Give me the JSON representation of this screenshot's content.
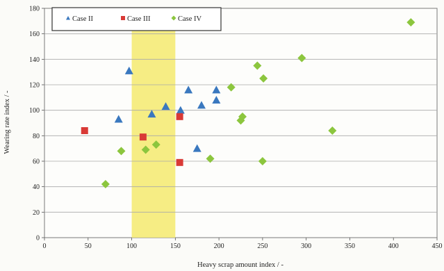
{
  "chart_data": {
    "type": "scatter",
    "xlabel": "Heavy scrap amount index / -",
    "ylabel": "Wearing rate index / -",
    "xlim": [
      0,
      450
    ],
    "ylim": [
      0,
      180
    ],
    "x_ticks": [
      "0",
      "50",
      "100",
      "150",
      "200",
      "250",
      "300",
      "350",
      "400",
      "450"
    ],
    "y_ticks": [
      "0",
      "20",
      "40",
      "60",
      "80",
      "100",
      "120",
      "140",
      "160",
      "180"
    ],
    "grid": "horizontal",
    "legend_position": "top-left",
    "highlight_band": {
      "x_from": 100,
      "x_to": 150,
      "color": "#f4ea6e"
    },
    "series": [
      {
        "name": "Case II",
        "legend_label": "Case II",
        "marker": "triangle",
        "color": "#3a78bf",
        "points": [
          [
            85,
            93
          ],
          [
            97,
            131
          ],
          [
            123,
            97
          ],
          [
            139,
            103
          ],
          [
            156,
            100
          ],
          [
            165,
            116
          ],
          [
            175,
            70
          ],
          [
            180,
            104
          ],
          [
            197,
            108
          ],
          [
            197,
            116
          ]
        ]
      },
      {
        "name": "Case III",
        "legend_label": "Case III",
        "marker": "square",
        "color": "#d93a36",
        "points": [
          [
            46,
            84
          ],
          [
            113,
            79
          ],
          [
            155,
            95
          ],
          [
            155,
            59
          ]
        ]
      },
      {
        "name": "Case IV",
        "legend_label": "Case IV",
        "marker": "diamond",
        "color": "#8cc63e",
        "points": [
          [
            70,
            42
          ],
          [
            88,
            68
          ],
          [
            116,
            69
          ],
          [
            128,
            73
          ],
          [
            190,
            62
          ],
          [
            214,
            118
          ],
          [
            225,
            92
          ],
          [
            227,
            95
          ],
          [
            244,
            135
          ],
          [
            250,
            60
          ],
          [
            251,
            125
          ],
          [
            295,
            141
          ],
          [
            330,
            84
          ],
          [
            420,
            169
          ]
        ]
      }
    ]
  }
}
